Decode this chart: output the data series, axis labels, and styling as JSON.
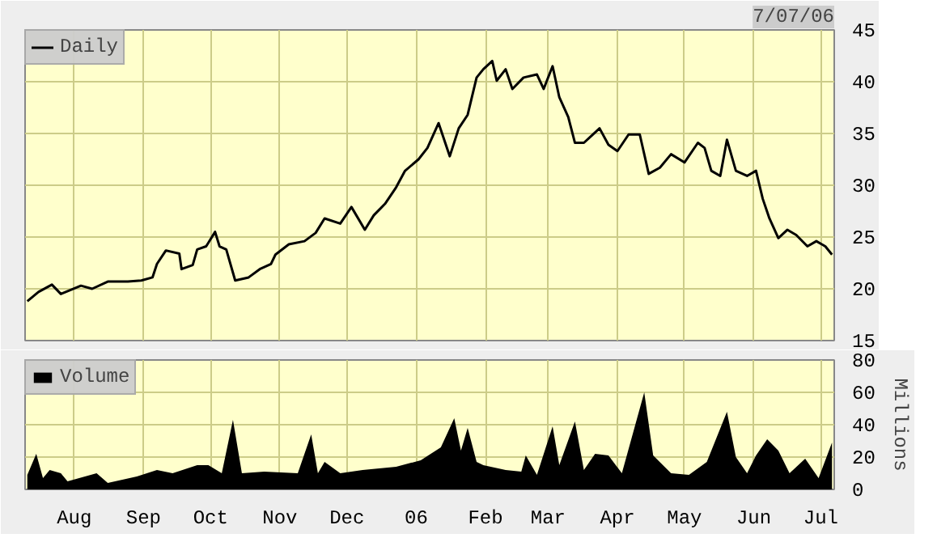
{
  "chart_data": [
    {
      "type": "line",
      "legend": "top left",
      "grid": true,
      "tick_labels": "y",
      "annotations": [
        "7/07/06"
      ],
      "xlim": [
        "2005-07-10",
        "2006-07-07"
      ],
      "xticks": [
        {
          "value": "2005-08-01",
          "label": null
        },
        {
          "value": "2005-09-01",
          "label": null
        },
        {
          "value": "2005-10-01",
          "label": null
        },
        {
          "value": "2005-11-01",
          "label": null
        },
        {
          "value": "2005-12-01",
          "label": null
        },
        {
          "value": "2006-01-01",
          "label": null
        },
        {
          "value": "2006-02-01",
          "label": null
        },
        {
          "value": "2006-03-01",
          "label": null
        },
        {
          "value": "2006-04-01",
          "label": null
        },
        {
          "value": "2006-05-01",
          "label": null
        },
        {
          "value": "2006-06-01",
          "label": null
        },
        {
          "value": "2006-07-01",
          "label": null
        }
      ],
      "ylim": [
        15,
        45
      ],
      "yticks": [
        15,
        20,
        25,
        30,
        35,
        40,
        45
      ],
      "x": [
        "2005-07-11",
        "2005-07-16",
        "2005-07-22",
        "2005-07-26",
        "2005-08-04",
        "2005-08-09",
        "2005-08-16",
        "2005-08-25",
        "2005-08-31",
        "2005-09-05",
        "2005-09-07",
        "2005-09-11",
        "2005-09-17",
        "2005-09-18",
        "2005-09-23",
        "2005-09-25",
        "2005-09-29",
        "2005-10-03",
        "2005-10-05",
        "2005-10-08",
        "2005-10-12",
        "2005-10-18",
        "2005-10-23",
        "2005-10-28",
        "2005-10-30",
        "2005-11-05",
        "2005-11-12",
        "2005-11-17",
        "2005-11-21",
        "2005-11-28",
        "2005-12-03",
        "2005-12-09",
        "2005-12-13",
        "2005-12-18",
        "2005-12-23",
        "2005-12-27",
        "2006-01-02",
        "2006-01-06",
        "2006-01-11",
        "2006-01-16",
        "2006-01-20",
        "2006-01-24",
        "2006-01-28",
        "2006-01-31",
        "2006-02-04",
        "2006-02-06",
        "2006-02-10",
        "2006-02-13",
        "2006-02-18",
        "2006-02-24",
        "2006-02-27",
        "2006-03-03",
        "2006-03-06",
        "2006-03-10",
        "2006-03-13",
        "2006-03-17",
        "2006-03-20",
        "2006-03-24",
        "2006-03-28",
        "2006-04-01",
        "2006-04-06",
        "2006-04-11",
        "2006-04-15",
        "2006-04-20",
        "2006-04-25",
        "2006-05-01",
        "2006-05-07",
        "2006-05-10",
        "2006-05-13",
        "2006-05-17",
        "2006-05-20",
        "2006-05-24",
        "2006-05-29",
        "2006-06-02",
        "2006-06-05",
        "2006-06-08",
        "2006-06-12",
        "2006-06-16",
        "2006-06-20",
        "2006-06-25",
        "2006-06-29",
        "2006-07-03",
        "2006-07-06"
      ],
      "series": [
        {
          "name": "Daily",
          "color": "#000000",
          "values": [
            18.8,
            19.7,
            20.4,
            19.5,
            20.3,
            20.0,
            20.7,
            20.7,
            20.8,
            21.1,
            22.4,
            23.7,
            23.4,
            21.9,
            22.3,
            23.8,
            24.1,
            25.5,
            24.1,
            23.8,
            20.8,
            21.1,
            21.9,
            22.4,
            23.3,
            24.3,
            24.6,
            25.4,
            26.8,
            26.3,
            27.9,
            25.7,
            27.1,
            28.2,
            29.8,
            31.4,
            32.5,
            33.6,
            36.0,
            32.8,
            35.5,
            36.8,
            40.4,
            41.2,
            42.0,
            40.1,
            41.2,
            39.3,
            40.4,
            40.7,
            39.3,
            41.5,
            38.5,
            36.6,
            34.1,
            34.1,
            34.7,
            35.5,
            33.9,
            33.3,
            34.9,
            34.9,
            31.1,
            31.7,
            33.0,
            32.2,
            34.1,
            33.6,
            31.4,
            30.9,
            34.4,
            31.4,
            30.9,
            31.4,
            28.7,
            26.8,
            24.9,
            25.7,
            25.2,
            24.1,
            24.6,
            24.1,
            23.3
          ]
        }
      ]
    },
    {
      "type": "area",
      "legend": "top left",
      "grid": true,
      "ylabel": "Millions",
      "xlim": [
        "2005-07-10",
        "2006-07-07"
      ],
      "xticks": [
        {
          "value": "2005-08-01",
          "label": "Aug"
        },
        {
          "value": "2005-09-01",
          "label": "Sep"
        },
        {
          "value": "2005-10-01",
          "label": "Oct"
        },
        {
          "value": "2005-11-01",
          "label": "Nov"
        },
        {
          "value": "2005-12-01",
          "label": "Dec"
        },
        {
          "value": "2006-01-01",
          "label": "06"
        },
        {
          "value": "2006-02-01",
          "label": "Feb"
        },
        {
          "value": "2006-03-01",
          "label": "Mar"
        },
        {
          "value": "2006-04-01",
          "label": "Apr"
        },
        {
          "value": "2006-05-01",
          "label": "May"
        },
        {
          "value": "2006-06-01",
          "label": "Jun"
        },
        {
          "value": "2006-07-01",
          "label": "Jul"
        }
      ],
      "ylim": [
        0,
        80
      ],
      "yticks": [
        0,
        20,
        40,
        60,
        80
      ],
      "x": [
        "2005-07-11",
        "2005-07-15",
        "2005-07-18",
        "2005-07-21",
        "2005-07-26",
        "2005-07-29",
        "2005-08-11",
        "2005-08-16",
        "2005-08-29",
        "2005-09-07",
        "2005-09-14",
        "2005-09-25",
        "2005-09-30",
        "2005-10-06",
        "2005-10-11",
        "2005-10-15",
        "2005-10-25",
        "2005-11-09",
        "2005-11-15",
        "2005-11-18",
        "2005-11-21",
        "2005-11-28",
        "2005-12-08",
        "2005-12-23",
        "2006-01-03",
        "2006-01-12",
        "2006-01-18",
        "2006-01-21",
        "2006-01-24",
        "2006-01-28",
        "2006-01-31",
        "2006-02-10",
        "2006-02-17",
        "2006-02-19",
        "2006-02-24",
        "2006-03-03",
        "2006-03-06",
        "2006-03-13",
        "2006-03-17",
        "2006-03-22",
        "2006-03-28",
        "2006-04-03",
        "2006-04-13",
        "2006-04-17",
        "2006-04-25",
        "2006-05-03",
        "2006-05-11",
        "2006-05-20",
        "2006-05-24",
        "2006-05-29",
        "2006-06-02",
        "2006-06-07",
        "2006-06-12",
        "2006-06-17",
        "2006-06-24",
        "2006-06-30",
        "2006-07-06"
      ],
      "series": [
        {
          "name": "Volume",
          "color": "#000000",
          "values": [
            9,
            22,
            7,
            12,
            10,
            5,
            10,
            4,
            8,
            12,
            10,
            15,
            15,
            10,
            43,
            10,
            11,
            10,
            34,
            10,
            17,
            10,
            12,
            14,
            18,
            26,
            44,
            24,
            38,
            17,
            15,
            12,
            11,
            21,
            9,
            39,
            15,
            42,
            12,
            22,
            21,
            10,
            60,
            21,
            10,
            9,
            17,
            48,
            20,
            10,
            21,
            31,
            24,
            10,
            19,
            7,
            29
          ]
        }
      ]
    }
  ]
}
